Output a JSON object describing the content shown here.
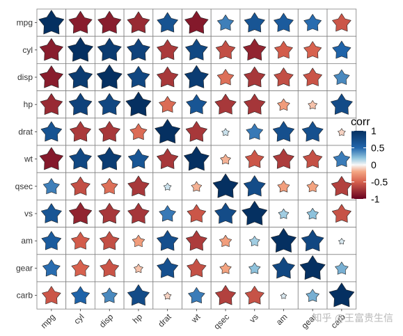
{
  "chart_data": {
    "type": "heatmap",
    "marker": "star",
    "variables": [
      "mpg",
      "cyl",
      "disp",
      "hp",
      "drat",
      "wt",
      "qsec",
      "vs",
      "am",
      "gear",
      "carb"
    ],
    "matrix": [
      [
        1,
        -0.85,
        -0.85,
        -0.78,
        0.68,
        -0.87,
        0.42,
        0.66,
        0.6,
        0.48,
        -0.55
      ],
      [
        -0.85,
        1,
        0.9,
        0.83,
        -0.7,
        0.78,
        -0.59,
        -0.81,
        -0.52,
        -0.49,
        0.53
      ],
      [
        -0.85,
        0.9,
        1,
        0.79,
        -0.71,
        0.89,
        -0.43,
        -0.71,
        -0.59,
        -0.56,
        0.39
      ],
      [
        -0.78,
        0.83,
        0.79,
        1,
        -0.45,
        0.66,
        -0.71,
        -0.72,
        -0.24,
        -0.13,
        0.75
      ],
      [
        0.68,
        -0.7,
        -0.71,
        -0.45,
        1,
        -0.71,
        0.09,
        0.44,
        0.71,
        0.7,
        -0.09
      ],
      [
        -0.87,
        0.78,
        0.89,
        0.66,
        -0.71,
        1,
        -0.17,
        -0.55,
        -0.69,
        -0.58,
        0.43
      ],
      [
        0.42,
        -0.59,
        -0.43,
        -0.71,
        0.09,
        -0.17,
        1,
        0.74,
        -0.23,
        -0.21,
        -0.66
      ],
      [
        0.66,
        -0.81,
        -0.71,
        -0.72,
        0.44,
        -0.55,
        0.74,
        1,
        0.17,
        0.21,
        -0.57
      ],
      [
        0.6,
        -0.52,
        -0.59,
        -0.24,
        0.71,
        -0.69,
        -0.23,
        0.17,
        1,
        0.79,
        0.06
      ],
      [
        0.48,
        -0.49,
        -0.56,
        -0.13,
        0.7,
        -0.58,
        -0.21,
        0.21,
        0.79,
        1,
        0.27
      ],
      [
        -0.55,
        0.53,
        0.39,
        0.75,
        -0.09,
        0.43,
        -0.66,
        -0.57,
        0.06,
        0.27,
        1
      ]
    ],
    "legend": {
      "title": "corr",
      "ticks": [
        1,
        0.5,
        0,
        -0.5,
        -1
      ],
      "tick_labels": [
        "1",
        "0.5",
        "0",
        "-0.5",
        "-1"
      ],
      "range": [
        -1,
        1
      ],
      "placement": "right"
    },
    "colors": {
      "high": "#053061",
      "mid_high": "#2166ac",
      "light_high": "#92c5de",
      "mid": "#f7f7f7",
      "light_low": "#f4a582",
      "mid_low": "#d6604d",
      "low": "#67001f",
      "grid": "#808080",
      "star_stroke": "#222222"
    }
  },
  "watermark": "知乎 @王富贵生信"
}
